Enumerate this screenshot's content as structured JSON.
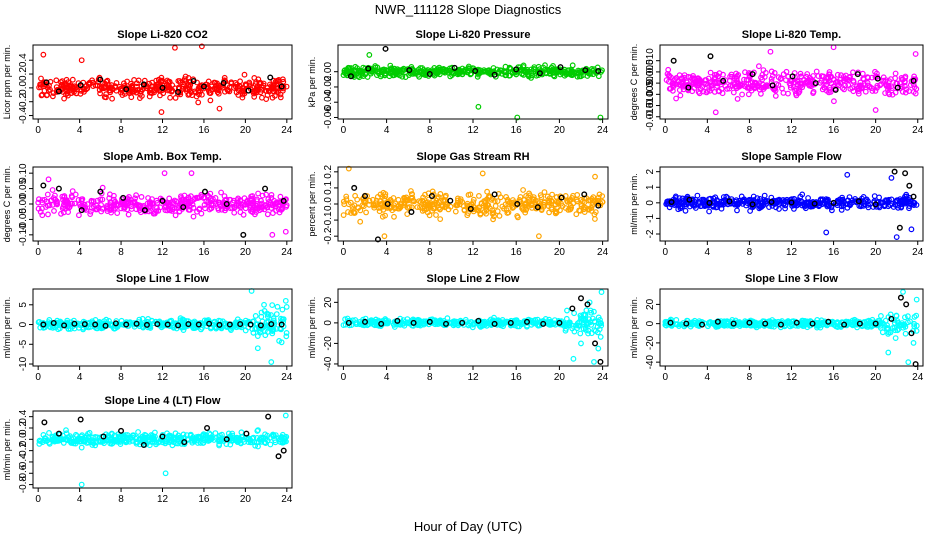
{
  "figure": {
    "title": "NWR_111128  Slope Diagnostics",
    "xlabel": "Hour of Day (UTC)"
  },
  "chart_data": [
    {
      "type": "scatter",
      "title": "Slope Li-820 CO2",
      "ylabel": "Licor ppm per min.",
      "color": "#ff0000",
      "xlim": [
        -0.5,
        24.5
      ],
      "ylim": [
        -0.45,
        0.62
      ],
      "xticks": [
        0,
        4,
        8,
        12,
        16,
        20,
        24
      ],
      "yticks": [
        -0.4,
        -0.2,
        0.0,
        0.2,
        0.4
      ],
      "ytick_labels": [
        "-0.4",
        "-0.2",
        "0.0",
        "0.2",
        "0.4"
      ],
      "series": [
        {
          "color": "#ff0000",
          "spread": 0.14,
          "x": [
            0.5,
            4.2,
            11.9,
            13.2,
            15.8,
            17.5
          ],
          "y": [
            0.48,
            0.4,
            -0.35,
            0.58,
            0.6,
            -0.3
          ]
        },
        {
          "color": "#000000",
          "x": [
            0.8,
            2,
            4.1,
            6,
            8.5,
            10.2,
            12,
            13.5,
            15,
            16,
            17.9,
            20.3,
            22.4,
            23.5
          ],
          "y": [
            0.08,
            -0.05,
            0.04,
            0.12,
            -0.02,
            0.05,
            0.0,
            -0.06,
            0.1,
            0.02,
            0.07,
            -0.04,
            0.15,
            0.02
          ]
        }
      ]
    },
    {
      "type": "scatter",
      "title": "Slope Li-820 Pressure",
      "ylabel": "kPa per min.",
      "color": "#00cc00",
      "xlim": [
        -0.5,
        24.5
      ],
      "ylim": [
        -0.062,
        0.035
      ],
      "xticks": [
        0,
        4,
        8,
        12,
        16,
        20,
        24
      ],
      "yticks": [
        -0.06,
        -0.04,
        -0.02,
        0.0
      ],
      "ytick_labels": [
        "-0.06",
        "-0.04",
        "-0.02",
        "0.00"
      ],
      "series": [
        {
          "color": "#00cc00",
          "spread": 0.007,
          "x": [
            2.4,
            12.5,
            16.1,
            23.8
          ],
          "y": [
            0.022,
            -0.046,
            -0.06,
            -0.06
          ]
        },
        {
          "color": "#000000",
          "x": [
            0.7,
            2.3,
            3.9,
            6.1,
            8,
            10.3,
            12.2,
            14,
            16,
            18.2,
            20.1,
            22.4,
            23.6
          ],
          "y": [
            -0.006,
            0.004,
            0.03,
            0.002,
            -0.003,
            0.005,
            0.001,
            -0.004,
            0.003,
            -0.002,
            0.006,
            0.002,
            0.001
          ]
        }
      ]
    },
    {
      "type": "scatter",
      "title": "Slope Li-820 Temp.",
      "ylabel": "degrees C per min.",
      "color": "#ff00ff",
      "xlim": [
        -0.5,
        24.5
      ],
      "ylim": [
        -0.016,
        0.017
      ],
      "xticks": [
        0,
        4,
        8,
        12,
        16,
        20,
        24
      ],
      "yticks": [
        -0.015,
        -0.01,
        -0.005,
        0.0,
        0.005,
        0.01
      ],
      "ytick_labels": [
        "-0.015",
        "-0.010",
        "-0.005",
        "0.000",
        "0.005",
        "0.010"
      ],
      "series": [
        {
          "color": "#ff00ff",
          "spread": 0.0055,
          "x": [
            4.8,
            10,
            16,
            20,
            23.8
          ],
          "y": [
            -0.013,
            0.014,
            0.016,
            -0.012,
            0.013
          ]
        },
        {
          "color": "#000000",
          "x": [
            0.8,
            2.2,
            4.3,
            5.5,
            8.3,
            10.2,
            12.1,
            14.3,
            16.2,
            18.3,
            20.2,
            22.1,
            23.6
          ],
          "y": [
            0.01,
            -0.002,
            0.012,
            0.001,
            0.004,
            -0.001,
            0.003,
            0.0,
            -0.003,
            0.004,
            0.002,
            -0.002,
            0.001
          ]
        }
      ]
    },
    {
      "type": "scatter",
      "title": "Slope Amb. Box Temp.",
      "ylabel": "degrees C per min.",
      "color": "#ff00ff",
      "xlim": [
        -0.5,
        24.5
      ],
      "ylim": [
        -0.12,
        0.12
      ],
      "xticks": [
        0,
        4,
        8,
        12,
        16,
        20,
        24
      ],
      "yticks": [
        -0.1,
        -0.05,
        0.0,
        0.05,
        0.1
      ],
      "ytick_labels": [
        "-0.10",
        "-0.05",
        "0.00",
        "0.05",
        "0.10"
      ],
      "series": [
        {
          "color": "#ff00ff",
          "spread": 0.035,
          "x": [
            1,
            12.2,
            14.8,
            22.6,
            23.9
          ],
          "y": [
            0.08,
            0.1,
            0.1,
            -0.1,
            -0.09
          ]
        },
        {
          "color": "#000000",
          "x": [
            0.5,
            2,
            4.2,
            6,
            8.2,
            10.3,
            12,
            14,
            16.1,
            18.2,
            19.8,
            21.9,
            23.7
          ],
          "y": [
            0.06,
            0.05,
            -0.02,
            0.04,
            0.02,
            -0.02,
            0.01,
            -0.01,
            0.04,
            0.0,
            -0.1,
            0.05,
            0.01
          ]
        }
      ]
    },
    {
      "type": "scatter",
      "title": "Slope Gas Stream RH",
      "ylabel": "percent per min.",
      "color": "#ffa500",
      "xlim": [
        -0.5,
        24.5
      ],
      "ylim": [
        -0.23,
        0.23
      ],
      "xticks": [
        0,
        4,
        8,
        12,
        16,
        20,
        24
      ],
      "yticks": [
        -0.2,
        -0.1,
        0.0,
        0.1,
        0.2
      ],
      "ytick_labels": [
        "-0.2",
        "-0.1",
        "0.0",
        "0.1",
        "0.2"
      ],
      "series": [
        {
          "color": "#ffa500",
          "spread": 0.07,
          "x": [
            0.5,
            3.8,
            12.9,
            18.1,
            23.3
          ],
          "y": [
            0.22,
            -0.2,
            0.19,
            -0.2,
            0.17
          ]
        },
        {
          "color": "#000000",
          "x": [
            1,
            2,
            3.2,
            4.1,
            6.3,
            8.2,
            9.9,
            11.8,
            14,
            16.1,
            18,
            20.2,
            22.3,
            23.6
          ],
          "y": [
            0.1,
            0.05,
            -0.22,
            0.0,
            -0.05,
            0.05,
            0.02,
            -0.03,
            0.06,
            0.0,
            -0.02,
            0.04,
            0.06,
            -0.01
          ]
        }
      ]
    },
    {
      "type": "scatter",
      "title": "Slope Sample Flow",
      "ylabel": "ml/min per min.",
      "color": "#0000ff",
      "xlim": [
        -0.5,
        24.5
      ],
      "ylim": [
        -2.45,
        2.3
      ],
      "xticks": [
        0,
        4,
        8,
        12,
        16,
        20,
        24
      ],
      "yticks": [
        -2,
        -1,
        0,
        1,
        2
      ],
      "ytick_labels": [
        "-2",
        "-1",
        "0",
        "1",
        "2"
      ],
      "series": [
        {
          "color": "#0000ff",
          "spread": 0.38,
          "x": [
            15.3,
            17.3,
            21.5,
            22,
            23.4
          ],
          "y": [
            -1.9,
            1.8,
            1.6,
            -2.2,
            -1.7
          ]
        },
        {
          "color": "#000000",
          "x": [
            0.6,
            2.3,
            4.2,
            6.1,
            8.3,
            10.1,
            12,
            14.2,
            16,
            18.4,
            20,
            21.8,
            22.3,
            22.8,
            23.2,
            23.6
          ],
          "y": [
            0.05,
            0.2,
            0.0,
            0.1,
            -0.1,
            0.05,
            0.02,
            -0.05,
            0.0,
            0.1,
            -0.1,
            2.0,
            -1.6,
            1.9,
            1.1,
            0.4
          ]
        }
      ]
    },
    {
      "type": "scatter",
      "title": "Slope Line 1 Flow",
      "ylabel": "ml/min per min.",
      "color": "#00ffff",
      "xlim": [
        -0.5,
        24.5
      ],
      "ylim": [
        -10.5,
        9
      ],
      "xticks": [
        0,
        4,
        8,
        12,
        16,
        20,
        24
      ],
      "yticks": [
        -10,
        -5,
        0,
        5
      ],
      "ytick_labels": [
        "-10",
        "-5",
        "0",
        "5"
      ],
      "series": [
        {
          "color": "#00ffff",
          "spread": 1.2,
          "x": [
            20.6,
            21.2,
            21.8,
            22.5,
            23.1,
            23.5,
            23.9
          ],
          "y": [
            8.5,
            -6,
            5,
            -9.5,
            4.5,
            -4.5,
            6
          ]
        },
        {
          "color": "#000000",
          "x": [
            0.5,
            1.5,
            2.5,
            3.5,
            4.5,
            5.5,
            6.5,
            7.5,
            8.5,
            9.5,
            10.5,
            11.5,
            12.5,
            13.5,
            14.5,
            15.5,
            16.5,
            17.5,
            18.5,
            19.5,
            20.5,
            21.5,
            22.5,
            23.5
          ],
          "y": [
            0,
            0.4,
            -0.2,
            0.2,
            0.1,
            0,
            -0.3,
            0.3,
            0,
            0.2,
            -0.1,
            0.1,
            0,
            -0.2,
            0.1,
            0,
            0.2,
            -0.1,
            0,
            0.1,
            0,
            -0.2,
            0.1,
            0
          ]
        }
      ]
    },
    {
      "type": "scatter",
      "title": "Slope Line 2 Flow",
      "ylabel": "ml/min per min.",
      "color": "#00ffff",
      "xlim": [
        -0.5,
        24.5
      ],
      "ylim": [
        -42,
        33
      ],
      "xticks": [
        0,
        4,
        8,
        12,
        16,
        20,
        24
      ],
      "yticks": [
        -40,
        -20,
        0,
        20
      ],
      "ytick_labels": [
        "-40",
        "-20",
        "0",
        "20"
      ],
      "series": [
        {
          "color": "#00ffff",
          "spread": 3.5,
          "x": [
            20.7,
            21.3,
            22,
            22.8,
            23.2,
            23.6,
            23.9
          ],
          "y": [
            12,
            -35,
            -20,
            20,
            -38,
            -25,
            30
          ]
        },
        {
          "color": "#000000",
          "x": [
            0.5,
            2,
            3.5,
            5,
            6.5,
            8,
            9.5,
            11,
            12.5,
            14,
            15.5,
            17,
            18.5,
            20,
            21.2,
            22,
            22.6,
            23.3,
            23.8
          ],
          "y": [
            0,
            1,
            -1,
            2,
            0,
            1,
            -1,
            0,
            2,
            -1,
            0,
            1,
            -1,
            0,
            14,
            24,
            18,
            -20,
            -38
          ]
        }
      ]
    },
    {
      "type": "scatter",
      "title": "Slope Line 3 Flow",
      "ylabel": "ml/min per min.",
      "color": "#00ffff",
      "xlim": [
        -0.5,
        24.5
      ],
      "ylim": [
        -44,
        36
      ],
      "xticks": [
        0,
        4,
        8,
        12,
        16,
        20,
        24
      ],
      "yticks": [
        -40,
        -20,
        0,
        20
      ],
      "ytick_labels": [
        "-40",
        "-20",
        "0",
        "20"
      ],
      "series": [
        {
          "color": "#00ffff",
          "spread": 3.5,
          "x": [
            20.5,
            21.2,
            21.9,
            22.6,
            23.1,
            23.6,
            23.9
          ],
          "y": [
            8,
            -30,
            -15,
            33,
            -40,
            -20,
            25
          ]
        },
        {
          "color": "#000000",
          "x": [
            0.5,
            2,
            3.5,
            5,
            6.5,
            8,
            9.5,
            11,
            12.5,
            14,
            15.5,
            17,
            18.5,
            20,
            21.5,
            22.4,
            22.9,
            23.4,
            23.8
          ],
          "y": [
            1,
            0,
            -1,
            2,
            0,
            1,
            0,
            -1,
            1,
            0,
            2,
            -1,
            0,
            0,
            5,
            27,
            20,
            -10,
            -42
          ]
        }
      ]
    },
    {
      "type": "scatter",
      "title": "Slope Line 4 (LT) Flow",
      "ylabel": "ml/min per min.",
      "color": "#00ffff",
      "xlim": [
        -0.5,
        24.5
      ],
      "ylim": [
        -0.86,
        0.5
      ],
      "xticks": [
        0,
        4,
        8,
        12,
        16,
        20,
        24
      ],
      "yticks": [
        -0.8,
        -0.6,
        -0.4,
        -0.2,
        0.0,
        0.2,
        0.4
      ],
      "ytick_labels": [
        "-0.8",
        "-0.6",
        "-0.4",
        "-0.2",
        "0.0",
        "0.2",
        "0.4"
      ],
      "series": [
        {
          "color": "#00ffff",
          "spread": 0.11,
          "x": [
            4.2,
            12.3,
            23.9
          ],
          "y": [
            -0.8,
            -0.6,
            0.42
          ]
        },
        {
          "color": "#000000",
          "x": [
            0.6,
            2,
            4.1,
            6.3,
            8,
            10.2,
            12,
            14.1,
            16.3,
            18.2,
            20.1,
            22.2,
            23.2,
            23.7
          ],
          "y": [
            0.3,
            0.1,
            0.35,
            0.05,
            0.15,
            -0.1,
            0.05,
            -0.05,
            0.2,
            0.0,
            0.1,
            0.4,
            -0.3,
            -0.2
          ]
        }
      ]
    }
  ]
}
